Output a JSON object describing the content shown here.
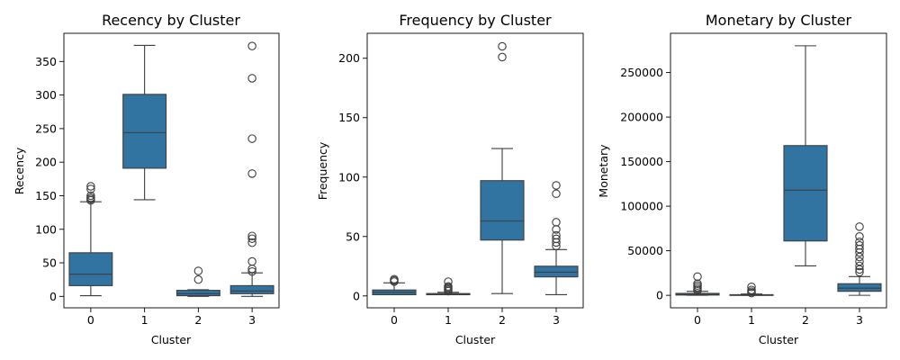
{
  "chart_data": [
    {
      "type": "box",
      "title": "Recency by Cluster",
      "xlabel": "Cluster",
      "ylabel": "Recency",
      "categories": [
        "0",
        "1",
        "2",
        "3"
      ],
      "ylim": [
        -17,
        392
      ],
      "yticks": [
        0,
        50,
        100,
        150,
        200,
        250,
        300,
        350
      ],
      "ytick_labels": [
        "0",
        "50",
        "100",
        "150",
        "200",
        "250",
        "300",
        "350"
      ],
      "boxes": [
        {
          "min": 1,
          "q1": 16,
          "median": 33,
          "q3": 65,
          "max": 141,
          "outliers": [
            143,
            145,
            147,
            150,
            160,
            164
          ]
        },
        {
          "min": 144,
          "q1": 191,
          "median": 244,
          "q3": 301,
          "max": 374,
          "outliers": []
        },
        {
          "min": 0,
          "q1": 1,
          "median": 4,
          "q3": 9,
          "max": 10,
          "outliers": [
            25,
            38
          ]
        },
        {
          "min": 0,
          "q1": 4,
          "median": 8,
          "q3": 16,
          "max": 35,
          "outliers": [
            37,
            41,
            52,
            80,
            86,
            90,
            183,
            235,
            325,
            373
          ]
        }
      ]
    },
    {
      "type": "box",
      "title": "Frequency by Cluster",
      "xlabel": "Cluster",
      "ylabel": "Frequency",
      "categories": [
        "0",
        "1",
        "2",
        "3"
      ],
      "ylim": [
        -10,
        221
      ],
      "yticks": [
        0,
        50,
        100,
        150,
        200
      ],
      "ytick_labels": [
        "0",
        "50",
        "100",
        "150",
        "200"
      ],
      "boxes": [
        {
          "min": 1,
          "q1": 1,
          "median": 3,
          "q3": 5,
          "max": 11,
          "outliers": [
            12,
            13,
            14
          ]
        },
        {
          "min": 1,
          "q1": 1,
          "median": 1,
          "q3": 2,
          "max": 3,
          "outliers": [
            4,
            5,
            6,
            7,
            8,
            12
          ]
        },
        {
          "min": 2,
          "q1": 47,
          "median": 63,
          "q3": 97,
          "max": 124,
          "outliers": [
            201,
            210
          ]
        },
        {
          "min": 1,
          "q1": 16,
          "median": 20,
          "q3": 25,
          "max": 39,
          "outliers": [
            42,
            45,
            48,
            51,
            56,
            62,
            86,
            93
          ]
        }
      ]
    },
    {
      "type": "box",
      "title": "Monetary by Cluster",
      "xlabel": "Cluster",
      "ylabel": "Monetary",
      "categories": [
        "0",
        "1",
        "2",
        "3"
      ],
      "ylim": [
        -14000,
        294000
      ],
      "yticks": [
        0,
        50000,
        100000,
        150000,
        200000,
        250000
      ],
      "ytick_labels": [
        "0",
        "50000",
        "100000",
        "150000",
        "200000",
        "250000"
      ],
      "boxes": [
        {
          "min": 0,
          "q1": 300,
          "median": 900,
          "q3": 2200,
          "max": 4500,
          "outliers": [
            5500,
            7000,
            9000,
            11000,
            13000,
            21000
          ]
        },
        {
          "min": 0,
          "q1": 100,
          "median": 300,
          "q3": 700,
          "max": 1500,
          "outliers": [
            2500,
            4000,
            6000,
            9500
          ]
        },
        {
          "min": 33000,
          "q1": 61000,
          "median": 118000,
          "q3": 168000,
          "max": 280000,
          "outliers": []
        },
        {
          "min": 0,
          "q1": 4500,
          "median": 8000,
          "q3": 13000,
          "max": 21000,
          "outliers": [
            26000,
            29000,
            33000,
            38000,
            43000,
            48000,
            52000,
            56000,
            60000,
            66000,
            77000
          ]
        }
      ]
    }
  ],
  "colors": {
    "box_fill": "#3274a1",
    "line": "#3d3d3d"
  }
}
